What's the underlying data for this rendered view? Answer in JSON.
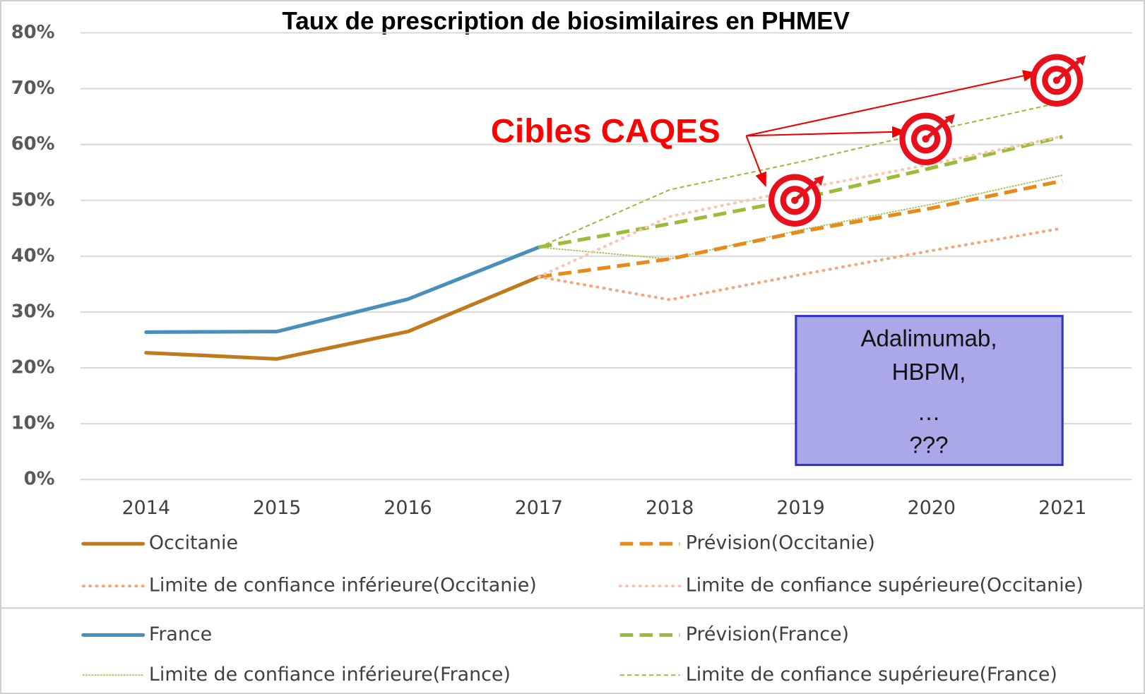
{
  "chart_data": {
    "type": "line",
    "title": "Taux de prescription de biosimilaires en PHMEV",
    "categories": [
      "2014",
      "2015",
      "2016",
      "2017",
      "2018",
      "2019",
      "2020",
      "2021"
    ],
    "series": [
      {
        "name": "Occitanie",
        "color": "#c07a1e",
        "style": "solid",
        "values": [
          22.7,
          21.6,
          26.5,
          36.3,
          null,
          null,
          null,
          null
        ]
      },
      {
        "name": "Prévision(Occitanie)",
        "color": "#e8891c",
        "style": "dash",
        "values": [
          null,
          null,
          null,
          36.3,
          39.5,
          44.4,
          48.6,
          53.5
        ]
      },
      {
        "name": "Limite de confiance inférieure(Occitanie)",
        "color": "#f4a77a",
        "style": "dot",
        "values": [
          null,
          null,
          null,
          36.3,
          32.2,
          36.7,
          41.0,
          45.0
        ]
      },
      {
        "name": "Limite de confiance supérieure(Occitanie)",
        "color": "#f8c6b0",
        "style": "dot",
        "values": [
          null,
          null,
          null,
          36.3,
          47.1,
          52.0,
          56.5,
          61.5
        ]
      },
      {
        "name": "France",
        "color": "#4a8fba",
        "style": "solid",
        "values": [
          26.4,
          26.5,
          32.3,
          41.6,
          null,
          null,
          null,
          null
        ]
      },
      {
        "name": "Prévision(France)",
        "color": "#9bbb3b",
        "style": "dash",
        "values": [
          null,
          null,
          null,
          41.6,
          45.8,
          50.3,
          55.8,
          61.4
        ]
      },
      {
        "name": "Limite de confiance inférieure(France)",
        "color": "#a8c860",
        "style": "finedot",
        "values": [
          null,
          null,
          null,
          41.6,
          39.5,
          44.7,
          49.3,
          54.5
        ]
      },
      {
        "name": "Limite de confiance supérieure(France)",
        "color": "#9bbb3b",
        "style": "thindash",
        "values": [
          null,
          null,
          null,
          41.6,
          51.9,
          56.9,
          62.4,
          67.6
        ]
      }
    ],
    "ylim": [
      0,
      80
    ],
    "yticks": [
      {
        "value": 0,
        "label": "0%"
      },
      {
        "value": 10,
        "label": "10%"
      },
      {
        "value": 20,
        "label": "20%"
      },
      {
        "value": 30,
        "label": "30%"
      },
      {
        "value": 40,
        "label": "40%"
      },
      {
        "value": 50,
        "label": "50%"
      },
      {
        "value": 60,
        "label": "60%"
      },
      {
        "value": 70,
        "label": "70%"
      },
      {
        "value": 80,
        "label": "80%"
      }
    ],
    "grid": true,
    "annotation": "Cibles CAQES",
    "target_values": [
      null,
      null,
      null,
      null,
      null,
      50,
      61,
      71.5
    ],
    "note_box": [
      "Adalimumab,",
      "HBPM,",
      "…",
      "???"
    ]
  }
}
